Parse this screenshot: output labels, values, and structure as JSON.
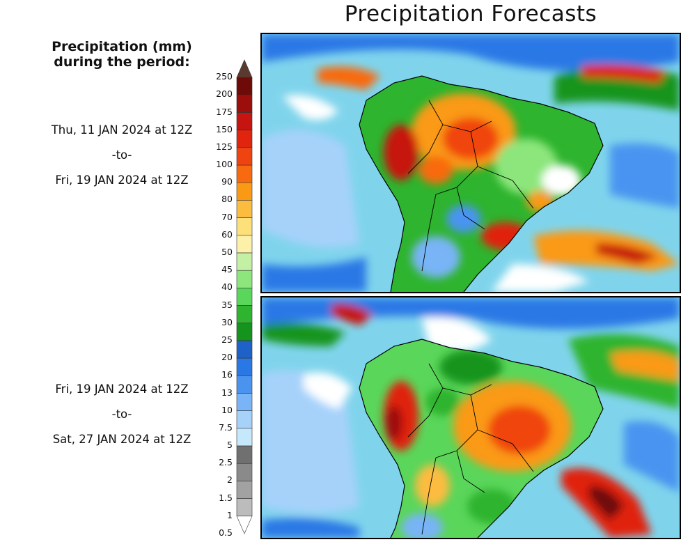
{
  "title": "Precipitation Forecasts",
  "legend": {
    "heading_line1": "Precipitation (mm)",
    "heading_line2": "during the period:",
    "levels": [
      {
        "label": "250",
        "color": "#5a3a2e"
      },
      {
        "label": "200",
        "color": "#6e0a08"
      },
      {
        "label": "175",
        "color": "#9c0e0c"
      },
      {
        "label": "150",
        "color": "#c61410"
      },
      {
        "label": "125",
        "color": "#e0240e"
      },
      {
        "label": "100",
        "color": "#f04410"
      },
      {
        "label": "90",
        "color": "#f86a10"
      },
      {
        "label": "80",
        "color": "#fa9a14"
      },
      {
        "label": "70",
        "color": "#fcbc40"
      },
      {
        "label": "60",
        "color": "#fde07a"
      },
      {
        "label": "50",
        "color": "#fdf0a8"
      },
      {
        "label": "45",
        "color": "#c4f0a4"
      },
      {
        "label": "40",
        "color": "#8ce67c"
      },
      {
        "label": "35",
        "color": "#5ad65a"
      },
      {
        "label": "30",
        "color": "#2eb42e"
      },
      {
        "label": "25",
        "color": "#14941c"
      },
      {
        "label": "20",
        "color": "#1e62c8"
      },
      {
        "label": "16",
        "color": "#2a78e6"
      },
      {
        "label": "13",
        "color": "#4a94f0"
      },
      {
        "label": "10",
        "color": "#78b4f6"
      },
      {
        "label": "7.5",
        "color": "#a6d2fa"
      },
      {
        "label": "5",
        "color": "#c6e8fc"
      },
      {
        "label": "2.5",
        "color": "#707070"
      },
      {
        "label": "2",
        "color": "#8a8a8a"
      },
      {
        "label": "1.5",
        "color": "#a2a2a2"
      },
      {
        "label": "1",
        "color": "#bcbcbc"
      },
      {
        "label": "0.5",
        "color": "#ffffff"
      }
    ]
  },
  "periods": [
    {
      "start": "Thu, 11 JAN 2024 at 12Z",
      "to": "-to-",
      "end": "Fri, 19 JAN 2024 at 12Z"
    },
    {
      "start": "Fri, 19 JAN 2024 at 12Z",
      "to": "-to-",
      "end": "Sat, 27 JAN 2024 at 12Z"
    }
  ],
  "map": {
    "region": "South America",
    "ocean_color": "#7fd4ec",
    "border_color": "#000000"
  }
}
